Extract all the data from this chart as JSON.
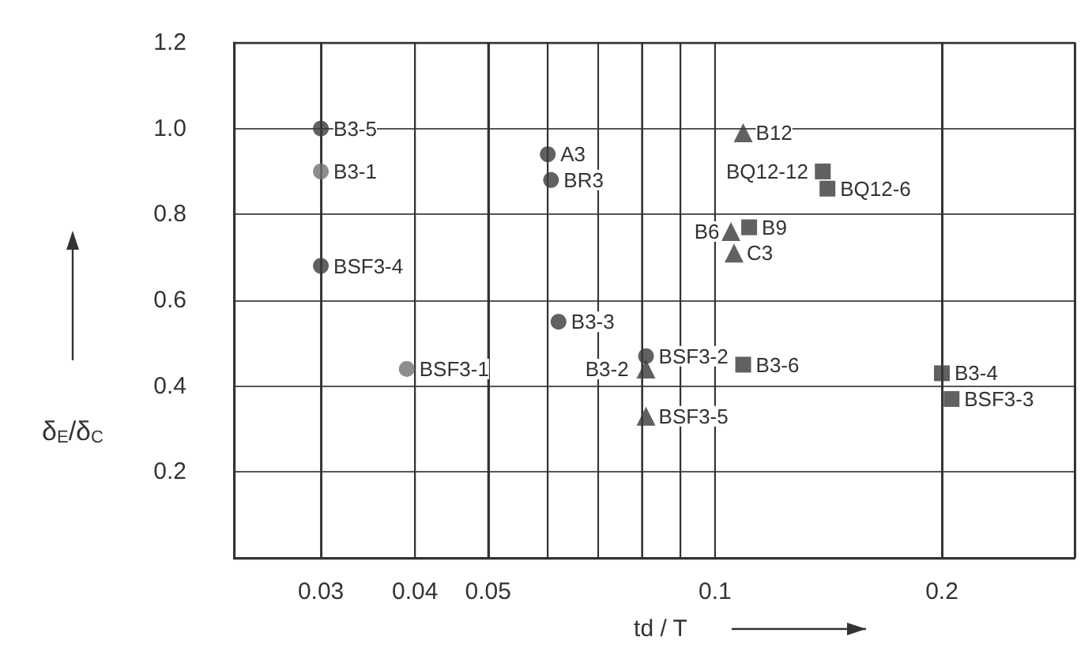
{
  "chart_data": {
    "type": "scatter",
    "xlabel": "td / T",
    "ylabel": "δ$_{E}$/δ$_{C}$",
    "log": "x",
    "xlim": [
      0.023,
      0.3
    ],
    "xticks": [
      0.03,
      0.04,
      0.05,
      {
        "value": 0.06,
        "label": null
      },
      {
        "value": 0.07,
        "label": null
      },
      {
        "value": 0.08,
        "label": null
      },
      {
        "value": 0.09,
        "label": null
      },
      0.1,
      0.2,
      {
        "value": 0.3,
        "label": null
      }
    ],
    "ylim": [
      0,
      1.2
    ],
    "yticks": [
      {
        "value": 0.2,
        "label": "0.2"
      },
      {
        "value": 0.4,
        "label": "0.4"
      },
      {
        "value": 0.6,
        "label": "0.6"
      },
      {
        "value": 0.8,
        "label": "0.8"
      },
      {
        "value": 1.0,
        "label": "1.0"
      },
      {
        "value": 1.2,
        "label": "1.2"
      }
    ],
    "grid": true,
    "series": [
      {
        "marker": "circle",
        "x": [
          0.03,
          0.03,
          0.03,
          0.06,
          0.0606,
          0.062,
          0.039,
          0.081
        ],
        "values": [
          1.0,
          0.9,
          0.68,
          0.94,
          0.88,
          0.55,
          0.44,
          0.47
        ],
        "colors": [
          "#3a3a3a",
          "#707070",
          "#3a3a3a",
          "#3a3a3a",
          "#3a3a3a",
          "#3a3a3a",
          "#707070",
          "#3a3a3a"
        ]
      },
      {
        "marker": "triangle",
        "x": [
          0.081,
          0.081,
          0.109,
          0.105,
          0.106
        ],
        "values": [
          0.44,
          0.33,
          0.99,
          0.76,
          0.71
        ],
        "colors": [
          "#3a3a3a",
          "#3a3a3a",
          "#3a3a3a",
          "#3a3a3a",
          "#3a3a3a"
        ]
      },
      {
        "marker": "square",
        "x": [
          0.139,
          0.141,
          0.111,
          0.109,
          0.2,
          0.206
        ],
        "values": [
          0.9,
          0.86,
          0.77,
          0.45,
          0.43,
          0.37
        ],
        "colors": [
          "#3a3a3a",
          "#3a3a3a",
          "#3a3a3a",
          "#3a3a3a",
          "#3a3a3a",
          "#3a3a3a"
        ]
      }
    ],
    "annotations": [
      {
        "text": "B3-5",
        "x": 0.03,
        "y": 1.0
      },
      {
        "text": "B3-1",
        "x": 0.03,
        "y": 0.9
      },
      {
        "text": "BSF3-4",
        "x": 0.03,
        "y": 0.68
      },
      {
        "text": "A3",
        "x": 0.06,
        "y": 0.94
      },
      {
        "text": "BR3",
        "x": 0.0606,
        "y": 0.88
      },
      {
        "text": "B3-3",
        "x": 0.062,
        "y": 0.55
      },
      {
        "text": "BSF3-1",
        "x": 0.039,
        "y": 0.44
      },
      {
        "text": "BSF3-2",
        "x": 0.081,
        "y": 0.47
      },
      {
        "text": "B3-2",
        "x": 0.081,
        "y": 0.44
      },
      {
        "text": "BSF3-5",
        "x": 0.081,
        "y": 0.33
      },
      {
        "text": "B12",
        "x": 0.109,
        "y": 0.99
      },
      {
        "text": "B6",
        "x": 0.105,
        "y": 0.76
      },
      {
        "text": "C3",
        "x": 0.106,
        "y": 0.71
      },
      {
        "text": "BQ12-12",
        "x": 0.139,
        "y": 0.9
      },
      {
        "text": "BQ12-6",
        "x": 0.141,
        "y": 0.86
      },
      {
        "text": "B9",
        "x": 0.111,
        "y": 0.77
      },
      {
        "text": "B3-6",
        "x": 0.109,
        "y": 0.45
      },
      {
        "text": "B3-4",
        "x": 0.2,
        "y": 0.43
      },
      {
        "text": "BSF3-3",
        "x": 0.206,
        "y": 0.37
      }
    ]
  }
}
